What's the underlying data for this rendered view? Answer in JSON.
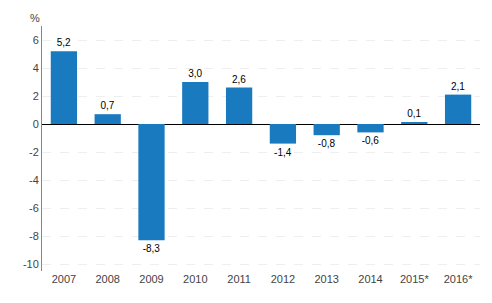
{
  "chart_data": {
    "type": "bar",
    "categories": [
      "2007",
      "2008",
      "2009",
      "2010",
      "2011",
      "2012",
      "2013",
      "2014",
      "2015*",
      "2016*"
    ],
    "values": [
      5.2,
      0.7,
      -8.3,
      3.0,
      2.6,
      -1.4,
      -0.8,
      -0.6,
      0.1,
      2.1
    ],
    "value_labels": [
      "5,2",
      "0,7",
      "-8,3",
      "3,0",
      "2,6",
      "-1,4",
      "-0,8",
      "-0,6",
      "0,1",
      "2,1"
    ],
    "data_labels": true,
    "color": "#1a7abf",
    "ylabel": "%",
    "ylim": [
      -10.5,
      7.0
    ],
    "yticks": [
      -10,
      -8,
      -6,
      -4,
      -2,
      0,
      2,
      4,
      6
    ],
    "grid": true
  }
}
